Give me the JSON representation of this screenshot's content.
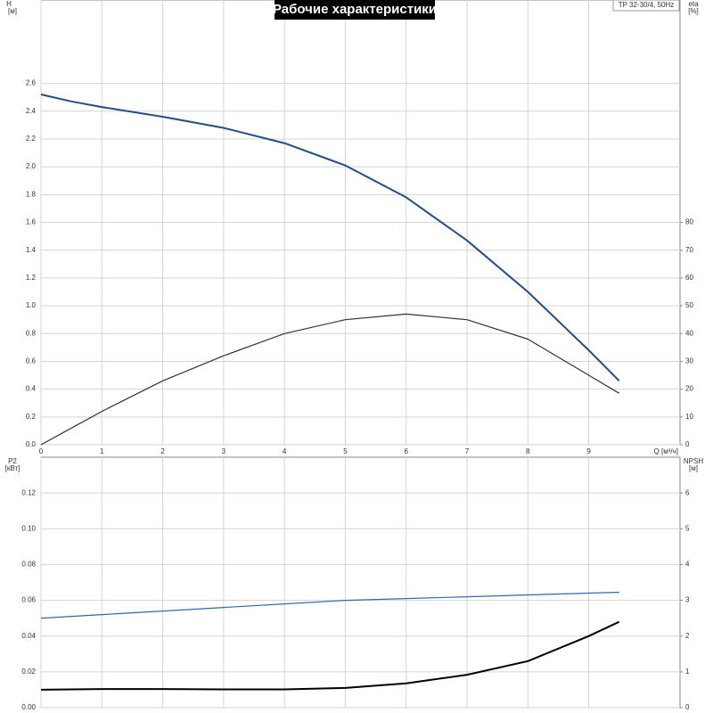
{
  "chart_data": [
    {
      "type": "line",
      "title": "Рабочие характеристики",
      "subtitle": "TP 32-30/4, 50Hz",
      "x_label": "Q [м³/ч]",
      "y_label": "H",
      "y_unit": "[м]",
      "y2_label": "eta",
      "y2_unit": "[%]",
      "x": [
        0,
        0.5,
        1,
        2,
        3,
        4,
        5,
        6,
        7,
        8,
        9,
        9.5
      ],
      "series": [
        {
          "color": "#1f4e8c",
          "width": 2,
          "values": [
            2.52,
            2.47,
            2.43,
            2.36,
            2.28,
            2.17,
            2.01,
            1.78,
            1.47,
            1.1,
            0.68,
            0.46
          ]
        },
        {
          "color": "#333333",
          "width": 1.2,
          "axis": "y2",
          "values": [
            0,
            6,
            12,
            23,
            32,
            40,
            45,
            47,
            45,
            38,
            25,
            18.5
          ]
        }
      ],
      "xlim": [
        0,
        10.5
      ],
      "xticks": [
        0,
        1,
        2,
        3,
        4,
        5,
        6,
        7,
        8,
        9
      ],
      "ylim": [
        0,
        3.2
      ],
      "yticks": [
        {
          "value": 0,
          "label": "0.0"
        },
        0.2,
        0.4,
        0.6,
        0.8,
        {
          "value": 1,
          "label": "1.0"
        },
        1.2,
        1.4,
        1.6,
        1.8,
        {
          "value": 2,
          "label": "2.0"
        },
        2.2,
        2.4,
        2.6
      ],
      "y2lim": [
        0,
        160
      ],
      "y2ticks": [
        0,
        10,
        20,
        30,
        40,
        50,
        60,
        70,
        80
      ],
      "grid": true
    },
    {
      "type": "line",
      "y_label": "P2",
      "y_unit": "[кВт]",
      "y2_label": "NPSH",
      "y2_unit": "[м]",
      "x": [
        0,
        1,
        2,
        3,
        4,
        5,
        6,
        7,
        8,
        9,
        9.5
      ],
      "series": [
        {
          "color": "#2f6aa8",
          "width": 1.2,
          "values": [
            0.05,
            0.052,
            0.054,
            0.056,
            0.058,
            0.06,
            0.061,
            0.062,
            0.063,
            0.064,
            0.0645
          ]
        },
        {
          "color": "#000000",
          "width": 2,
          "axis": "y2",
          "values": [
            0.5,
            0.52,
            0.52,
            0.51,
            0.51,
            0.55,
            0.68,
            0.92,
            1.3,
            2.0,
            2.4
          ]
        }
      ],
      "xlim": [
        0,
        10.5
      ],
      "xticks": [
        0,
        1,
        2,
        3,
        4,
        5,
        6,
        7,
        8,
        9
      ],
      "ylim": [
        0,
        0.14
      ],
      "yticks": [
        {
          "value": 0,
          "label": "0.00"
        },
        {
          "value": 0.02,
          "label": "0.02"
        },
        {
          "value": 0.04,
          "label": "0.04"
        },
        {
          "value": 0.06,
          "label": "0.06"
        },
        {
          "value": 0.08,
          "label": "0.08"
        },
        {
          "value": 0.1,
          "label": "0.10"
        },
        {
          "value": 0.12,
          "label": "0.12"
        }
      ],
      "y2lim": [
        0,
        7
      ],
      "y2ticks": [
        0,
        1,
        2,
        3,
        4,
        5,
        6
      ],
      "grid": true
    }
  ]
}
